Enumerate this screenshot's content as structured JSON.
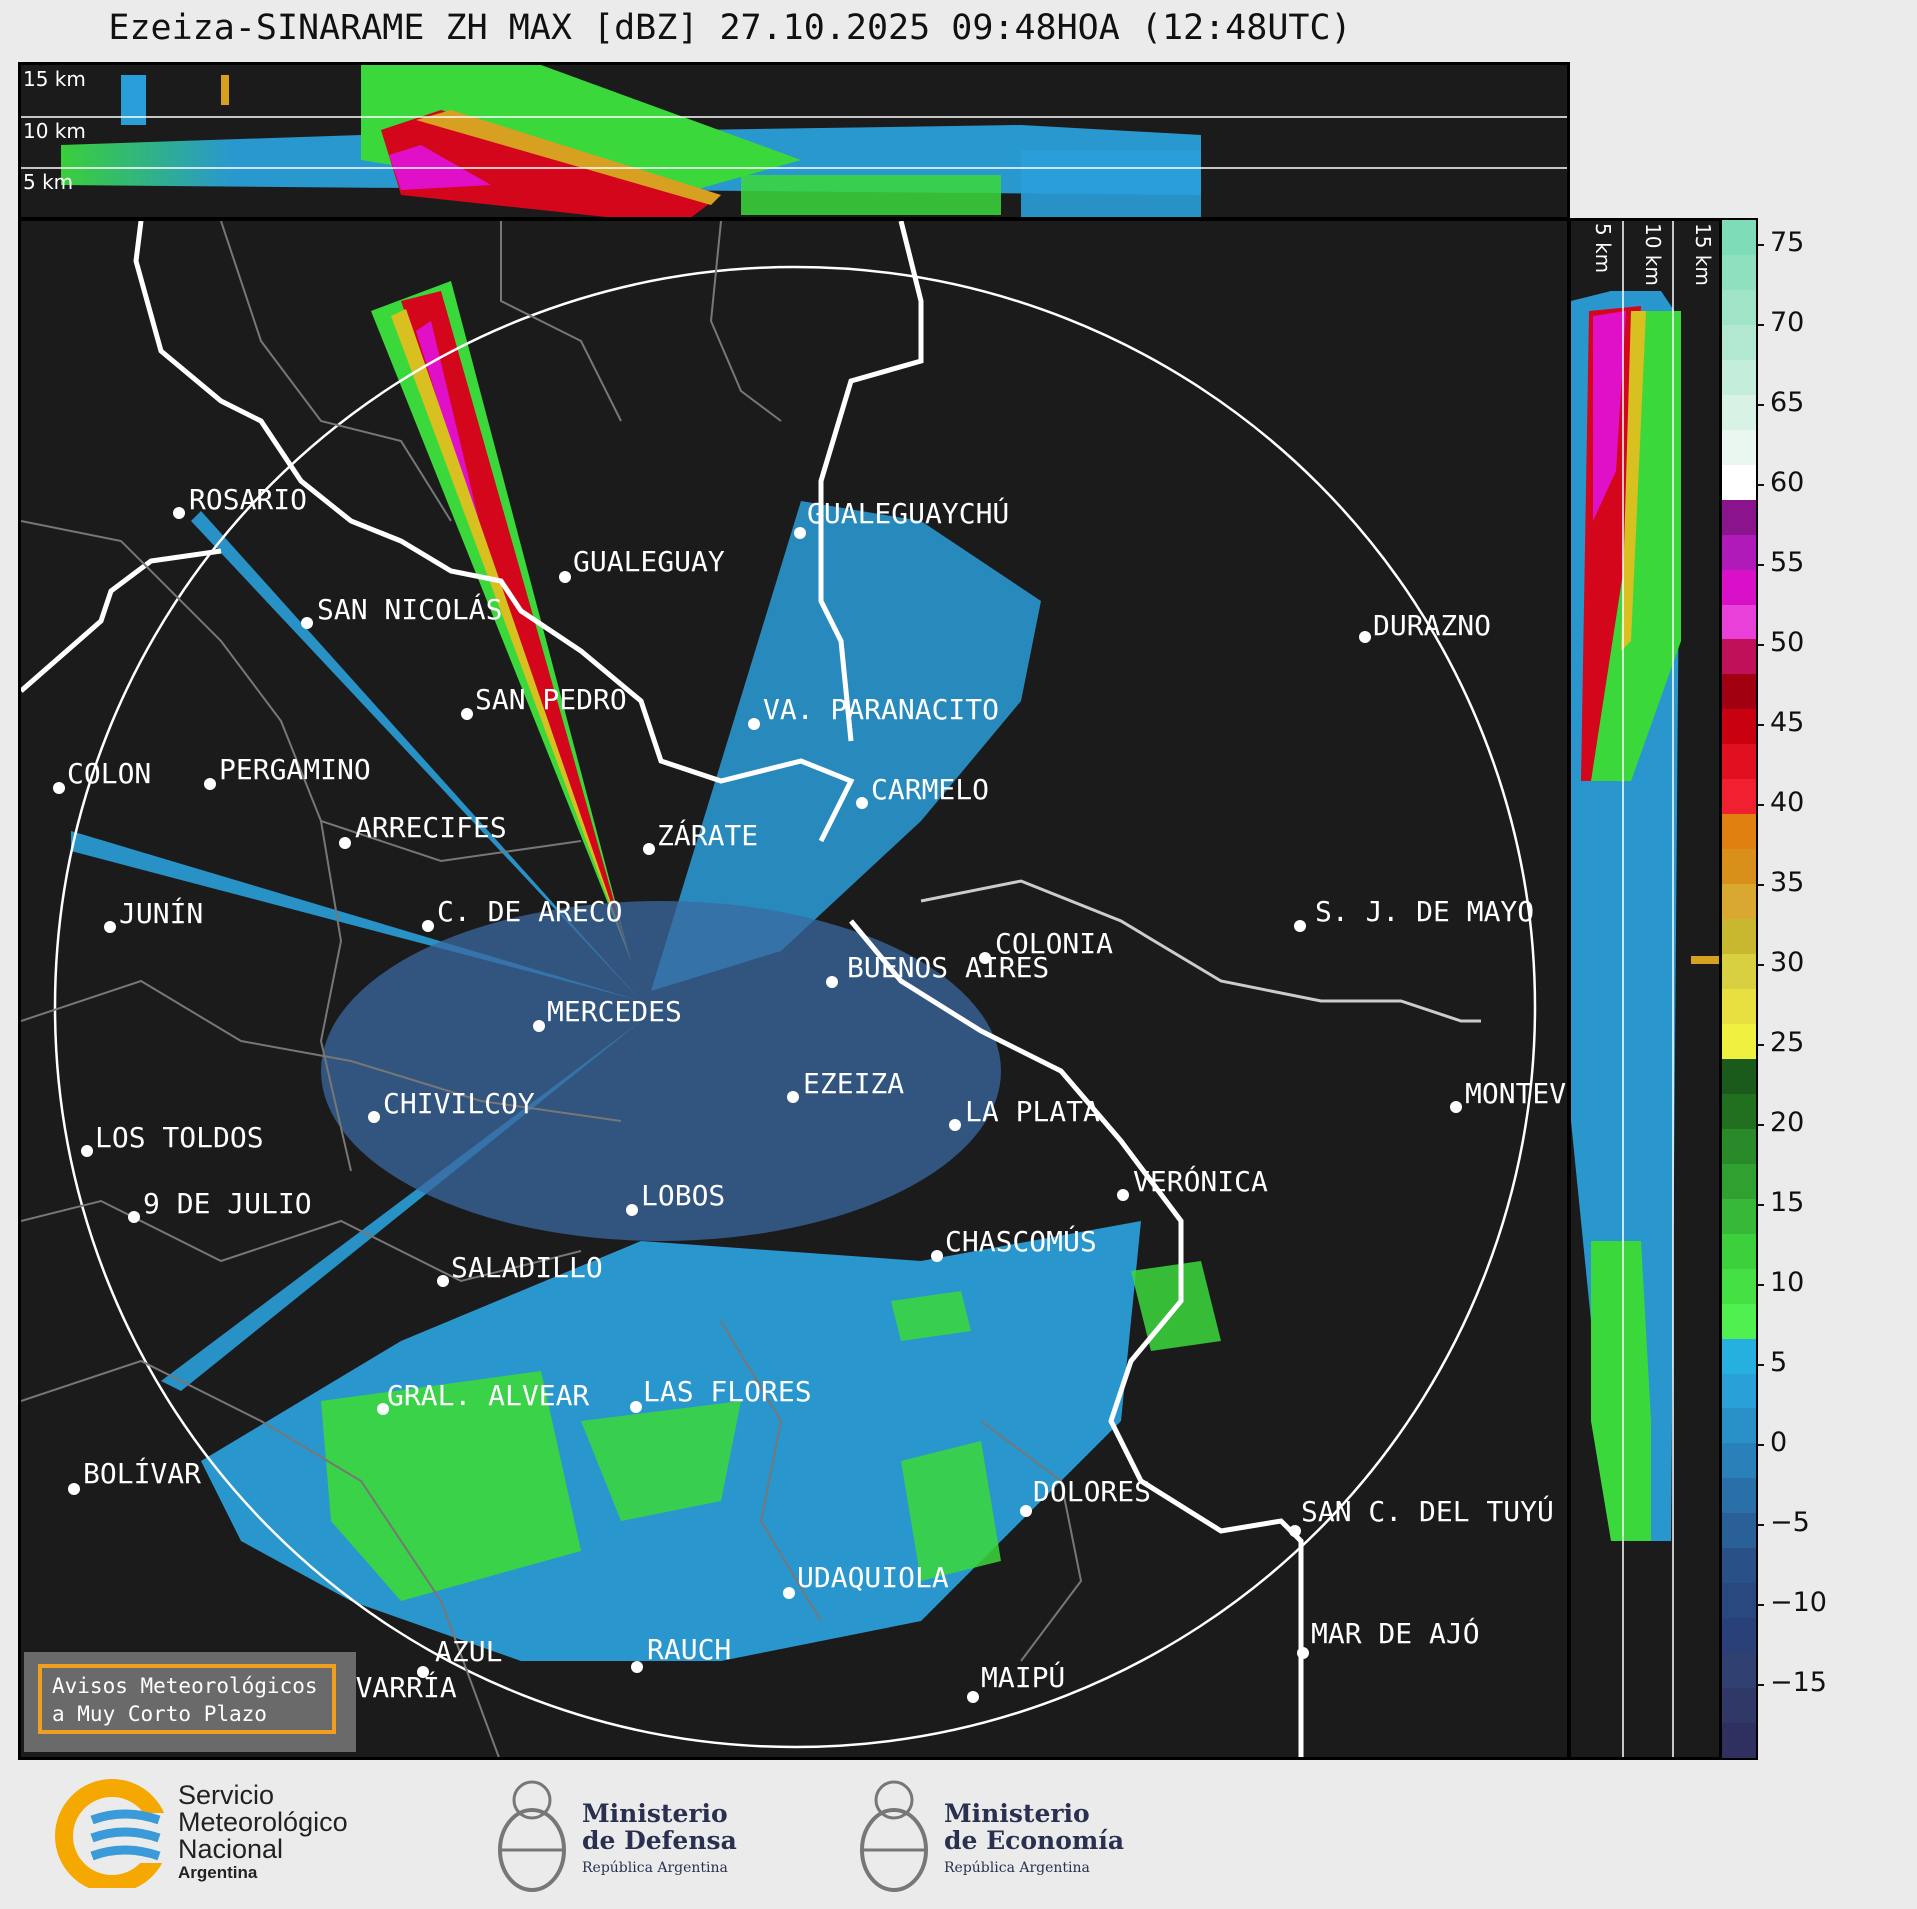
{
  "title": "Ezeiza-SINARAME ZH MAX [dBZ] 27.10.2025 09:48HOA (12:48UTC)",
  "height_labels": {
    "h15": "15 km",
    "h10": "10 km",
    "h5": "5 km"
  },
  "colorbar": {
    "ticks": [
      "75",
      "70",
      "65",
      "60",
      "55",
      "50",
      "45",
      "40",
      "35",
      "30",
      "25",
      "20",
      "15",
      "10",
      "5",
      "0",
      "−5",
      "−10",
      "−15"
    ]
  },
  "cities": [
    {
      "name": "ROSARIO"
    },
    {
      "name": "GUALEGUAYCHÚ"
    },
    {
      "name": "GUALEGUAY"
    },
    {
      "name": "SAN NICOLÁS"
    },
    {
      "name": "DURAZNO"
    },
    {
      "name": "SAN PEDRO"
    },
    {
      "name": "VA. PARANACITO"
    },
    {
      "name": "COLON"
    },
    {
      "name": "PERGAMINO"
    },
    {
      "name": "CARMELO"
    },
    {
      "name": "ARRECIFES"
    },
    {
      "name": "ZÁRATE"
    },
    {
      "name": "S. J. DE MAYO"
    },
    {
      "name": "C. DE ARECO"
    },
    {
      "name": "COLONIA"
    },
    {
      "name": "JUNÍN"
    },
    {
      "name": "BUENOS AIRES"
    },
    {
      "name": "MERCEDES"
    },
    {
      "name": "EZEIZA"
    },
    {
      "name": "MONTEVIDEO"
    },
    {
      "name": "CHIVILCOY"
    },
    {
      "name": "LA PLATA"
    },
    {
      "name": "LOS TOLDOS"
    },
    {
      "name": "LOBOS"
    },
    {
      "name": "VERÓNICA"
    },
    {
      "name": "9 DE JULIO"
    },
    {
      "name": "CHASCOMÚS"
    },
    {
      "name": "SALADILLO"
    },
    {
      "name": "GRAL. ALVEAR"
    },
    {
      "name": "LAS FLORES"
    },
    {
      "name": "BOLÍVAR"
    },
    {
      "name": "DOLORES"
    },
    {
      "name": "SAN C. DEL TUYÚ"
    },
    {
      "name": "UDAQUIOLA"
    },
    {
      "name": "MAR DE AJÓ"
    },
    {
      "name": "RAUCH"
    },
    {
      "name": "AZUL"
    },
    {
      "name": "OLAVARRÍA"
    },
    {
      "name": "MAIPÚ"
    }
  ],
  "warning_box": {
    "line1": "Avisos Meteorológicos",
    "line2": "a Muy Corto Plazo"
  },
  "logos": {
    "smn": {
      "line1": "Servicio",
      "line2": "Meteorológico",
      "line3": "Nacional",
      "line4": "Argentina"
    },
    "defensa": {
      "line1": "Ministerio",
      "line2": "de Defensa",
      "line3": "República Argentina"
    },
    "economia": {
      "line1": "Ministerio",
      "line2": "de Economía",
      "line3": "República Argentina"
    }
  }
}
